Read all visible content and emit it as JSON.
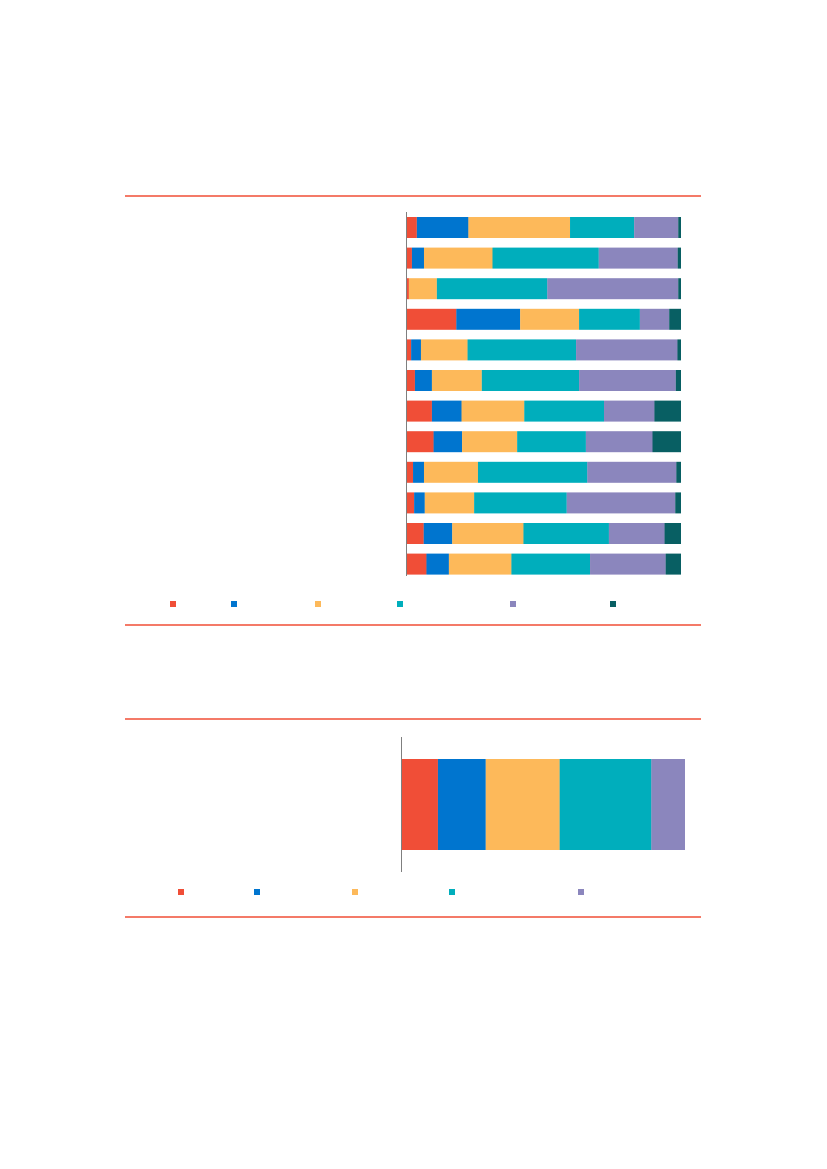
{
  "colors": {
    "rule": "#F04E37",
    "axis": "#7F7F7F",
    "series": [
      "#F04E37",
      "#0075CF",
      "#FDB95A",
      "#00AEBC",
      "#8B86BD",
      "#085F63"
    ]
  },
  "chart_data": [
    {
      "type": "bar",
      "orientation": "horizontal",
      "stacked": "percent",
      "title": "",
      "xlabel": "",
      "ylabel": "",
      "xlim": [
        0,
        100
      ],
      "grid": false,
      "legend": "bottom",
      "categories": [
        "",
        "",
        "",
        "",
        "",
        "",
        "",
        "",
        "",
        "",
        "",
        ""
      ],
      "series": [
        {
          "values": [
            3.6,
            1.8,
            0.7,
            18.0,
            1.5,
            2.9,
            9.1,
            9.7,
            2.2,
            2.6,
            6.1,
            7.1
          ]
        },
        {
          "values": [
            18.8,
            4.4,
            0.0,
            23.3,
            3.6,
            6.2,
            10.8,
            10.4,
            4.0,
            3.9,
            10.4,
            8.2
          ]
        },
        {
          "values": [
            37.1,
            25.0,
            10.2,
            21.5,
            17.0,
            18.2,
            22.9,
            20.1,
            19.7,
            18.0,
            26.0,
            22.8
          ]
        },
        {
          "values": [
            23.4,
            38.8,
            40.3,
            22.2,
            39.6,
            35.5,
            29.1,
            25.1,
            39.9,
            33.8,
            31.2,
            28.7
          ]
        },
        {
          "values": [
            16.1,
            28.8,
            47.8,
            10.7,
            37.0,
            35.3,
            18.4,
            24.3,
            32.5,
            39.6,
            20.3,
            27.6
          ]
        },
        {
          "values": [
            1.0,
            1.2,
            1.0,
            4.3,
            1.3,
            1.9,
            9.7,
            10.4,
            1.7,
            2.1,
            6.0,
            5.6
          ]
        }
      ]
    },
    {
      "type": "bar",
      "orientation": "horizontal",
      "stacked": "percent",
      "title": "",
      "xlabel": "",
      "ylabel": "",
      "xlim": [
        0,
        100
      ],
      "grid": false,
      "legend": "bottom",
      "categories": [
        ""
      ],
      "series": [
        {
          "values": [
            12.7
          ]
        },
        {
          "values": [
            16.9
          ]
        },
        {
          "values": [
            26.1
          ]
        },
        {
          "values": [
            32.4
          ]
        },
        {
          "values": [
            11.9
          ]
        }
      ]
    }
  ]
}
